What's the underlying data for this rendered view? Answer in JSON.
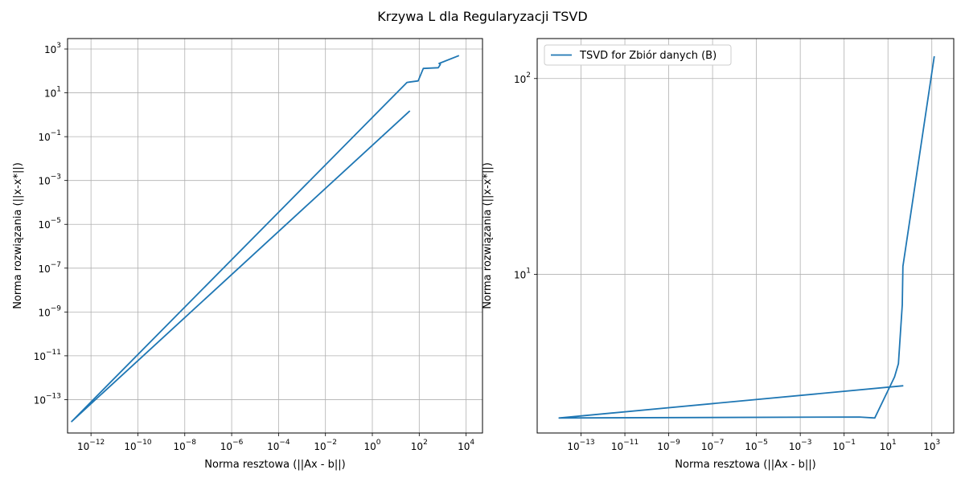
{
  "title": "Krzywa L dla Regularyzacji TSVD",
  "colors": {
    "series": "#1f77b4",
    "grid": "#b0b0b0",
    "axis": "#000000"
  },
  "chart_data": [
    {
      "type": "line",
      "xscale": "log",
      "yscale": "log",
      "xlabel": "Norma resztowa (||Ax - b||)",
      "ylabel": "Norma rozwiązania (||x-x*||)",
      "xlim": [
        1e-13,
        50000
      ],
      "ylim": [
        3e-15,
        3000
      ],
      "xticks": [
        {
          "base": "10",
          "exp": "−12",
          "value": 1e-12
        },
        {
          "base": "10",
          "exp": "−10",
          "value": 1e-10
        },
        {
          "base": "10",
          "exp": "−8",
          "value": 1e-08
        },
        {
          "base": "10",
          "exp": "−6",
          "value": 1e-06
        },
        {
          "base": "10",
          "exp": "−4",
          "value": 0.0001
        },
        {
          "base": "10",
          "exp": "−2",
          "value": 0.01
        },
        {
          "base": "10",
          "exp": "0",
          "value": 1
        },
        {
          "base": "10",
          "exp": "2",
          "value": 100
        },
        {
          "base": "10",
          "exp": "4",
          "value": 10000
        }
      ],
      "yticks": [
        {
          "base": "10",
          "exp": "−13",
          "value": 1e-13
        },
        {
          "base": "10",
          "exp": "−11",
          "value": 1e-11
        },
        {
          "base": "10",
          "exp": "−9",
          "value": 1e-09
        },
        {
          "base": "10",
          "exp": "−7",
          "value": 1e-07
        },
        {
          "base": "10",
          "exp": "−5",
          "value": 1e-05
        },
        {
          "base": "10",
          "exp": "−3",
          "value": 0.001
        },
        {
          "base": "10",
          "exp": "−1",
          "value": 0.1
        },
        {
          "base": "10",
          "exp": "1",
          "value": 10
        },
        {
          "base": "10",
          "exp": "3",
          "value": 1000
        }
      ],
      "grid": true,
      "series": [
        {
          "x": [
            40,
            1.5e-13,
            30,
            90,
            150,
            650,
            800,
            700,
            5000
          ],
          "y": [
            1.5,
            1e-14,
            30,
            35,
            130,
            140,
            200,
            220,
            500
          ]
        }
      ]
    },
    {
      "type": "line",
      "xscale": "log",
      "yscale": "log",
      "xlabel": "Norma resztowa (||Ax - b||)",
      "ylabel": "Norma rozwiązania (||x-x*||)",
      "xlim": [
        1e-15,
        10000.0
      ],
      "ylim": [
        1.55,
        160
      ],
      "xticks": [
        {
          "base": "10",
          "exp": "−13",
          "value": 1e-13
        },
        {
          "base": "10",
          "exp": "−11",
          "value": 1e-11
        },
        {
          "base": "10",
          "exp": "−9",
          "value": 1e-09
        },
        {
          "base": "10",
          "exp": "−7",
          "value": 1e-07
        },
        {
          "base": "10",
          "exp": "−5",
          "value": 1e-05
        },
        {
          "base": "10",
          "exp": "−3",
          "value": 0.001
        },
        {
          "base": "10",
          "exp": "−1",
          "value": 0.1
        },
        {
          "base": "10",
          "exp": "1",
          "value": 10
        },
        {
          "base": "10",
          "exp": "3",
          "value": 1000
        }
      ],
      "yticks": [
        {
          "base": "10",
          "exp": "1",
          "value": 10
        },
        {
          "base": "10",
          "exp": "2",
          "value": 100
        }
      ],
      "grid": true,
      "legend": {
        "placement": "upper left"
      },
      "series": [
        {
          "name": "TSVD for Zbiór danych (B)",
          "x": [
            50,
            1e-14,
            0.5,
            2.5,
            20,
            30,
            45,
            48,
            1300
          ],
          "y": [
            2.7,
            1.85,
            1.87,
            1.85,
            3.0,
            3.5,
            7,
            11,
            130
          ]
        }
      ]
    }
  ]
}
